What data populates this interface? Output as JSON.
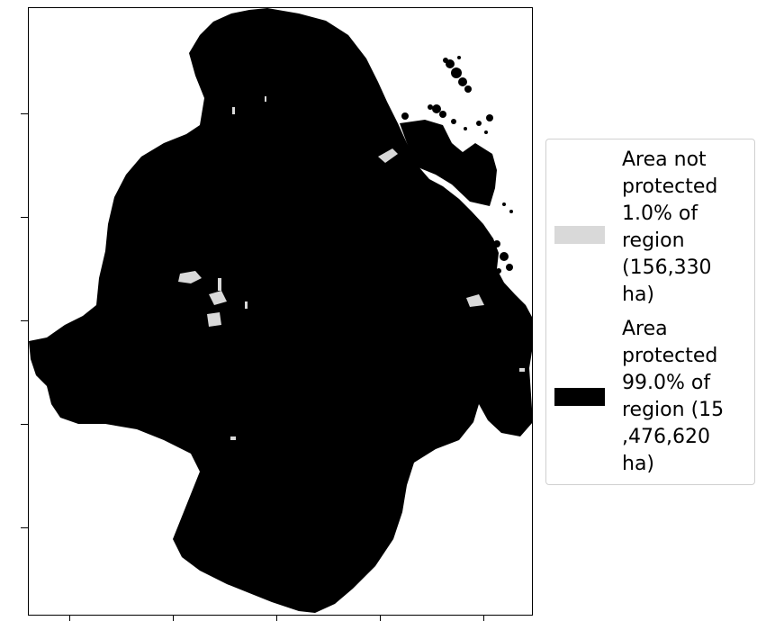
{
  "legend": {
    "items": [
      {
        "label": "Area not protected 1.0% of region (156,330 ha)",
        "lines": [
          "Area not",
          "protected",
          "1.0% of",
          "region",
          "(156,330",
          "ha)"
        ],
        "color": "#d9d9d9"
      },
      {
        "label": "Area protected 99.0% of region (15,476,620 ha)",
        "lines": [
          "Area",
          "protected",
          "99.0% of",
          "region (15",
          ",476,620",
          "ha)"
        ],
        "color": "#000000"
      }
    ]
  },
  "map": {
    "protected_color": "#000000",
    "not_protected_color": "#d9d9d9",
    "share_not_protected_percent": 1.0,
    "share_protected_percent": 99.0,
    "area_not_protected_ha": 156330,
    "area_protected_ha": 15476620
  }
}
